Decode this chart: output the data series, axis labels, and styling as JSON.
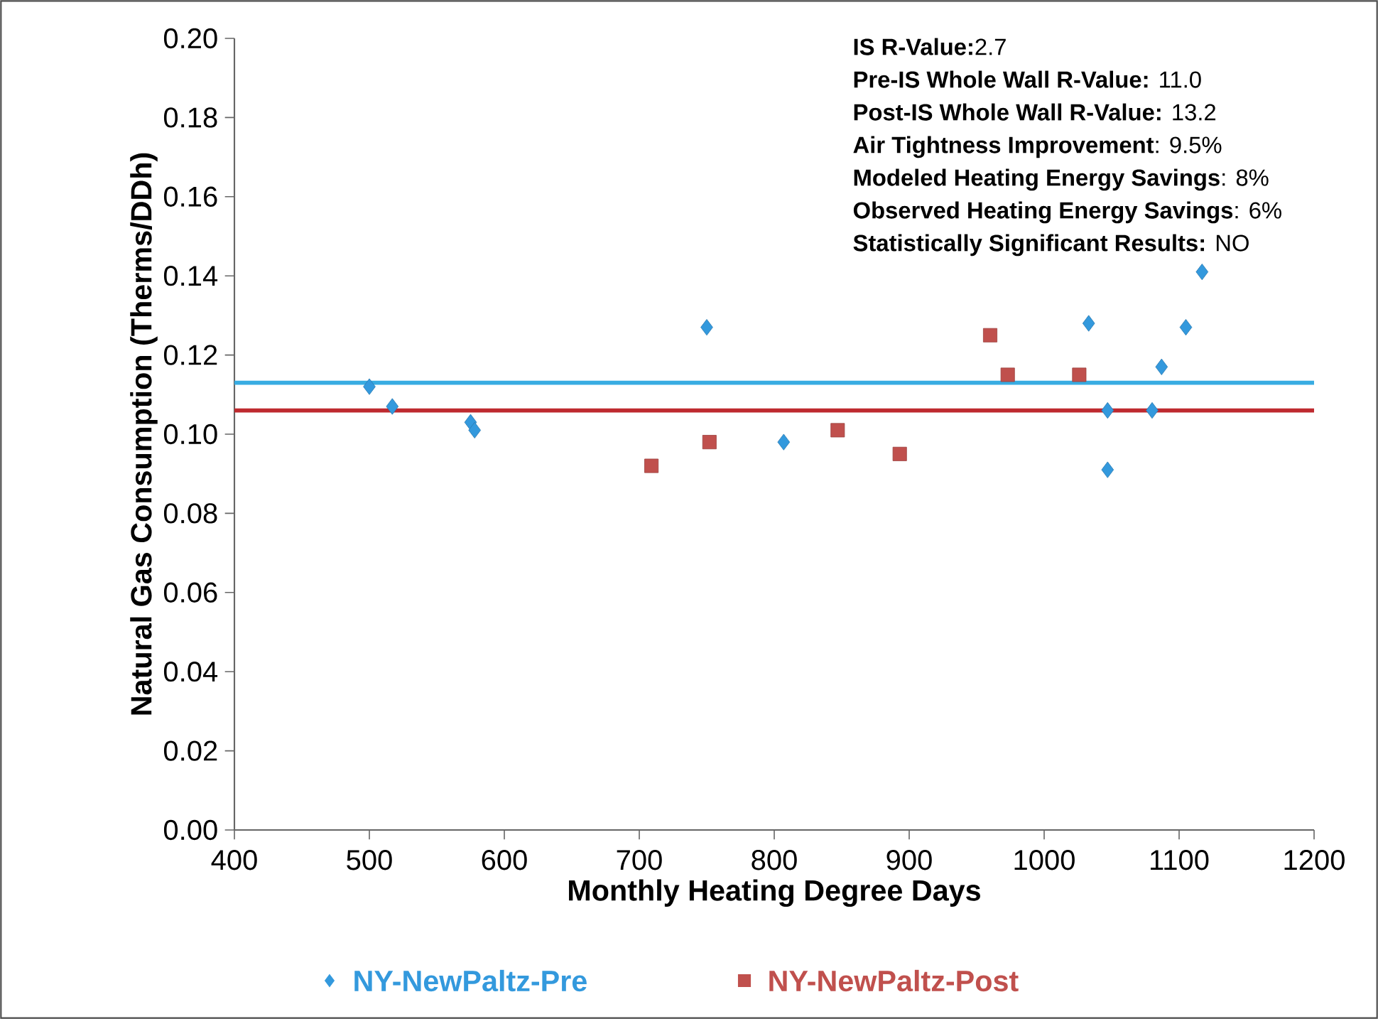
{
  "chart_data": {
    "type": "scatter",
    "xlabel": "Monthly Heating Degree Days",
    "ylabel": "Natural Gas Consumption (Therms/DDh)",
    "xlim": [
      400,
      1200
    ],
    "xticks": [
      400,
      500,
      600,
      700,
      800,
      900,
      1000,
      1100,
      1200
    ],
    "ylim": [
      0,
      0.2
    ],
    "yticks": [
      {
        "value": 0,
        "label": "0.00"
      },
      {
        "value": 0.02,
        "label": "0.02"
      },
      {
        "value": 0.04,
        "label": "0.04"
      },
      {
        "value": 0.06,
        "label": "0.06"
      },
      {
        "value": 0.08,
        "label": "0.08"
      },
      {
        "value": 0.1,
        "label": "0.10"
      },
      {
        "value": 0.12,
        "label": "0.12"
      },
      {
        "value": 0.14,
        "label": "0.14"
      },
      {
        "value": 0.16,
        "label": "0.16"
      },
      {
        "value": 0.18,
        "label": "0.18"
      },
      {
        "value": 0.2,
        "label": "0.20"
      }
    ],
    "grid": false,
    "legend": "bottom",
    "series": [
      {
        "name": "NY-NewPaltz-Pre",
        "color": "#3399dd",
        "marker": "diamond",
        "x": [
          500,
          517,
          575,
          578,
          750,
          807,
          1033,
          1117,
          1105,
          1087,
          1047,
          1080,
          1047
        ],
        "values": [
          0.112,
          0.107,
          0.103,
          0.101,
          0.127,
          0.098,
          0.128,
          0.141,
          0.127,
          0.117,
          0.106,
          0.106,
          0.091
        ]
      },
      {
        "name": "NY-NewPaltz-Post",
        "color": "#c0504d",
        "marker": "square",
        "x": [
          709,
          752,
          960,
          973,
          1026,
          847,
          893
        ],
        "values": [
          0.092,
          0.098,
          0.125,
          0.115,
          0.115,
          0.101,
          0.095
        ]
      }
    ],
    "ref_lines": [
      {
        "axis": "y",
        "value": 0.113,
        "color": "#38ace2"
      },
      {
        "axis": "y",
        "value": 0.106,
        "color": "#be2a2f"
      }
    ],
    "annotations": [
      "**IS R-Value:**2.7",
      "**Pre-IS Whole Wall R-Value:** 11.0",
      "**Post-IS Whole Wall R-Value:** 13.2",
      "**Air Tightness Improvement**: 9.5%",
      "**Modeled Heating Energy Savings**: 8%",
      "**Observed Heating Energy Savings**: 6%",
      "**Statistically Significant Results:** NO"
    ]
  }
}
